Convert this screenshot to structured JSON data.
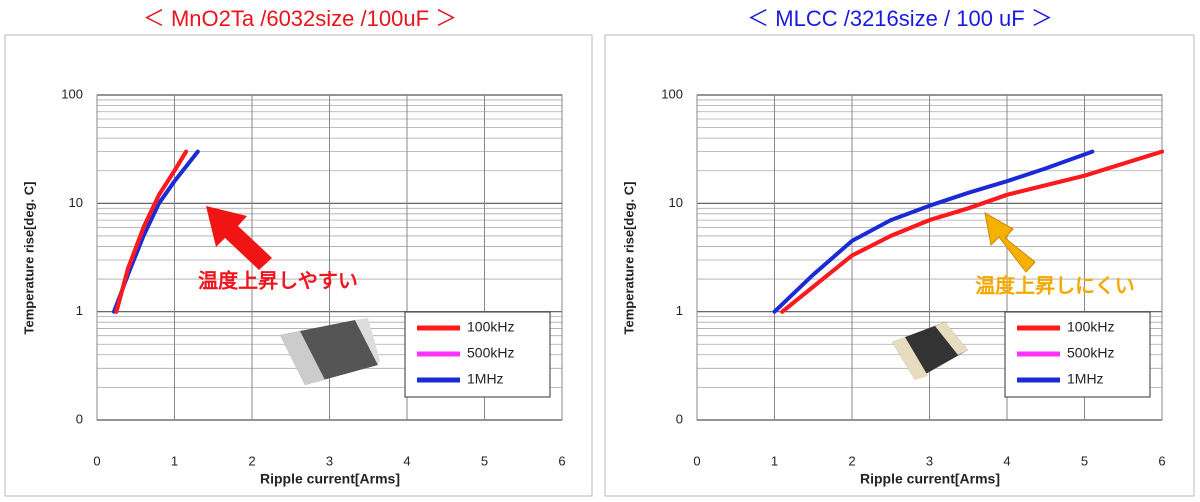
{
  "chart_data": [
    {
      "type": "line",
      "title": "＜ MnO2Ta /6032size /100uF ＞",
      "title_color": "#e8141e",
      "xlabel": "Ripple current[Arms]",
      "ylabel": "Temperature rise[deg. C]",
      "xlim": [
        0,
        6
      ],
      "xticks": [
        0,
        1,
        2,
        3,
        4,
        5,
        6
      ],
      "ylim": [
        0.1,
        100
      ],
      "yticks": [
        {
          "value": 0.1,
          "label": "0"
        },
        1,
        10,
        100
      ],
      "log_y": true,
      "grid": true,
      "annotation": "温度上昇しやすい",
      "annotation_color": "#f0141e",
      "series": [
        {
          "name": "100kHz",
          "color": "#ff1a1a",
          "x": [
            0.25,
            0.4,
            0.6,
            0.8,
            1.0,
            1.15
          ],
          "values": [
            1,
            2.5,
            6,
            12,
            20,
            30
          ]
        },
        {
          "name": "500kHz",
          "color": "#ff33ff",
          "x": [
            0.25,
            0.4,
            0.6,
            0.8,
            1.0,
            1.15
          ],
          "values": [
            1,
            2.5,
            6,
            12,
            20,
            30
          ]
        },
        {
          "name": "1MHz",
          "color": "#1a2bd6",
          "x": [
            0.22,
            0.4,
            0.6,
            0.8,
            1.0,
            1.3
          ],
          "values": [
            1,
            2.2,
            5,
            10,
            16,
            30
          ]
        }
      ]
    },
    {
      "type": "line",
      "title": "＜ MLCC /3216size / 100 uF ＞",
      "title_color": "#1a1ae0",
      "xlabel": "Ripple current[Arms]",
      "ylabel": "Temperature rise[deg. C]",
      "xlim": [
        0,
        6
      ],
      "xticks": [
        0,
        1,
        2,
        3,
        4,
        5,
        6
      ],
      "ylim": [
        0.1,
        100
      ],
      "yticks": [
        {
          "value": 0.1,
          "label": "0"
        },
        1,
        10,
        100
      ],
      "log_y": true,
      "grid": true,
      "annotation": "温度上昇しにくい",
      "annotation_color": "#f5a800",
      "series": [
        {
          "name": "100kHz",
          "color": "#ff1a1a",
          "x": [
            1.1,
            1.5,
            2,
            2.5,
            3,
            3.5,
            4,
            5,
            6
          ],
          "values": [
            1,
            1.7,
            3.3,
            5,
            7,
            9,
            12,
            18,
            30
          ]
        },
        {
          "name": "500kHz",
          "color": "#ff33ff",
          "x": [
            1.1,
            1.5,
            2,
            2.5,
            3,
            3.5,
            4,
            5,
            6
          ],
          "values": [
            1,
            1.7,
            3.3,
            5,
            7,
            9,
            12,
            18,
            30
          ]
        },
        {
          "name": "1MHz",
          "color": "#1a2bd6",
          "x": [
            1,
            1.5,
            2,
            2.5,
            3,
            3.5,
            4,
            4.5,
            5.1
          ],
          "values": [
            1,
            2.2,
            4.5,
            7,
            9.5,
            12.5,
            16,
            21,
            30
          ]
        }
      ]
    }
  ]
}
